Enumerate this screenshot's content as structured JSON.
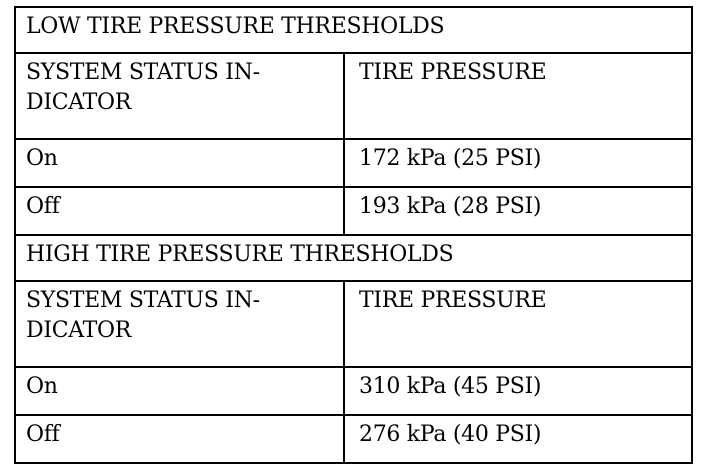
{
  "sections": [
    {
      "title": "LOW TIRE PRESSURE THRESHOLDS",
      "col1": "SYSTEM STATUS IN-\nDICATOR",
      "col2": "TIRE PRESSURE",
      "rows": [
        {
          "status": "On",
          "pressure": "172 kPa (25 PSI)"
        },
        {
          "status": "Off",
          "pressure": "193 kPa (28 PSI)"
        }
      ]
    },
    {
      "title": "HIGH TIRE PRESSURE THRESHOLDS",
      "col1": "SYSTEM STATUS IN-\nDICATOR",
      "col2": "TIRE PRESSURE",
      "rows": [
        {
          "status": "On",
          "pressure": "310 kPa (45 PSI)"
        },
        {
          "status": "Off",
          "pressure": "276 kPa (40 PSI)"
        }
      ]
    }
  ]
}
